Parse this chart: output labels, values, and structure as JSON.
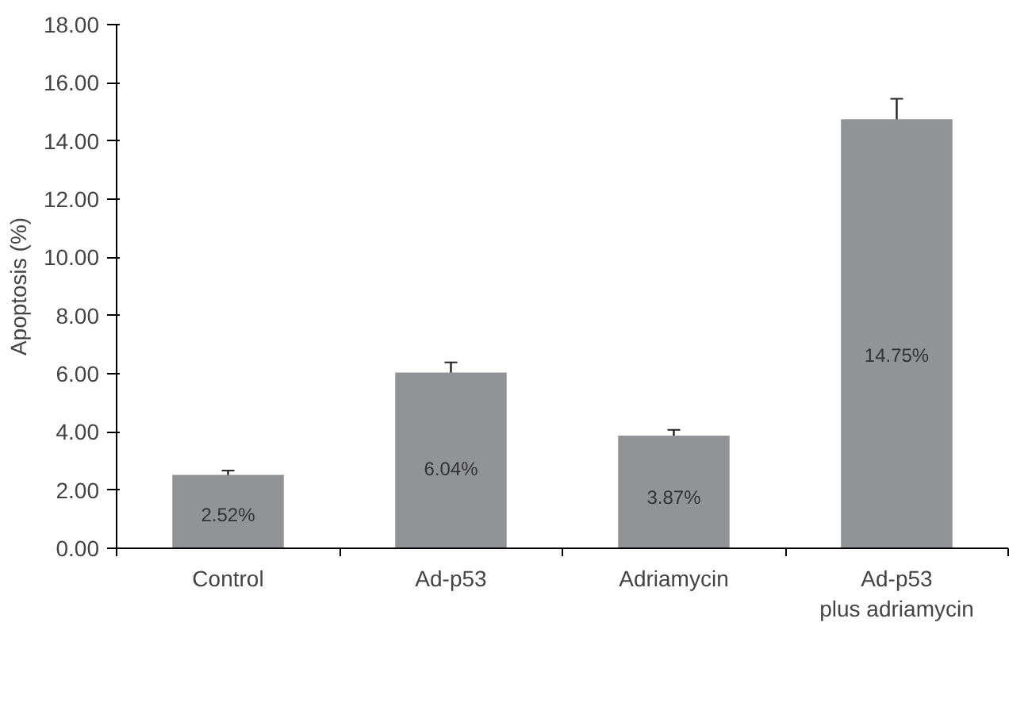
{
  "chart_data": {
    "type": "bar",
    "ylabel": "Apoptosis (%)",
    "categories": [
      "Control",
      "Ad-p53",
      "Adriamycin",
      "Ad-p53\nplus adriamycin"
    ],
    "values": [
      2.52,
      6.04,
      3.87,
      14.75
    ],
    "errors": [
      0.15,
      0.35,
      0.2,
      0.7
    ],
    "value_labels": [
      "2.52%",
      "6.04%",
      "3.87%",
      "14.75%"
    ],
    "color": "#929396",
    "ylim": [
      0,
      18
    ],
    "yticks": [
      {
        "value": 0,
        "label": "0.00"
      },
      {
        "value": 2,
        "label": "2.00"
      },
      {
        "value": 4,
        "label": "4.00"
      },
      {
        "value": 6,
        "label": "6.00"
      },
      {
        "value": 8,
        "label": "8.00"
      },
      {
        "value": 10,
        "label": "10.00"
      },
      {
        "value": 12,
        "label": "12.00"
      },
      {
        "value": 14,
        "label": "14.00"
      },
      {
        "value": 16,
        "label": "16.00"
      },
      {
        "value": 18,
        "label": "18.00"
      }
    ],
    "grid": false
  }
}
